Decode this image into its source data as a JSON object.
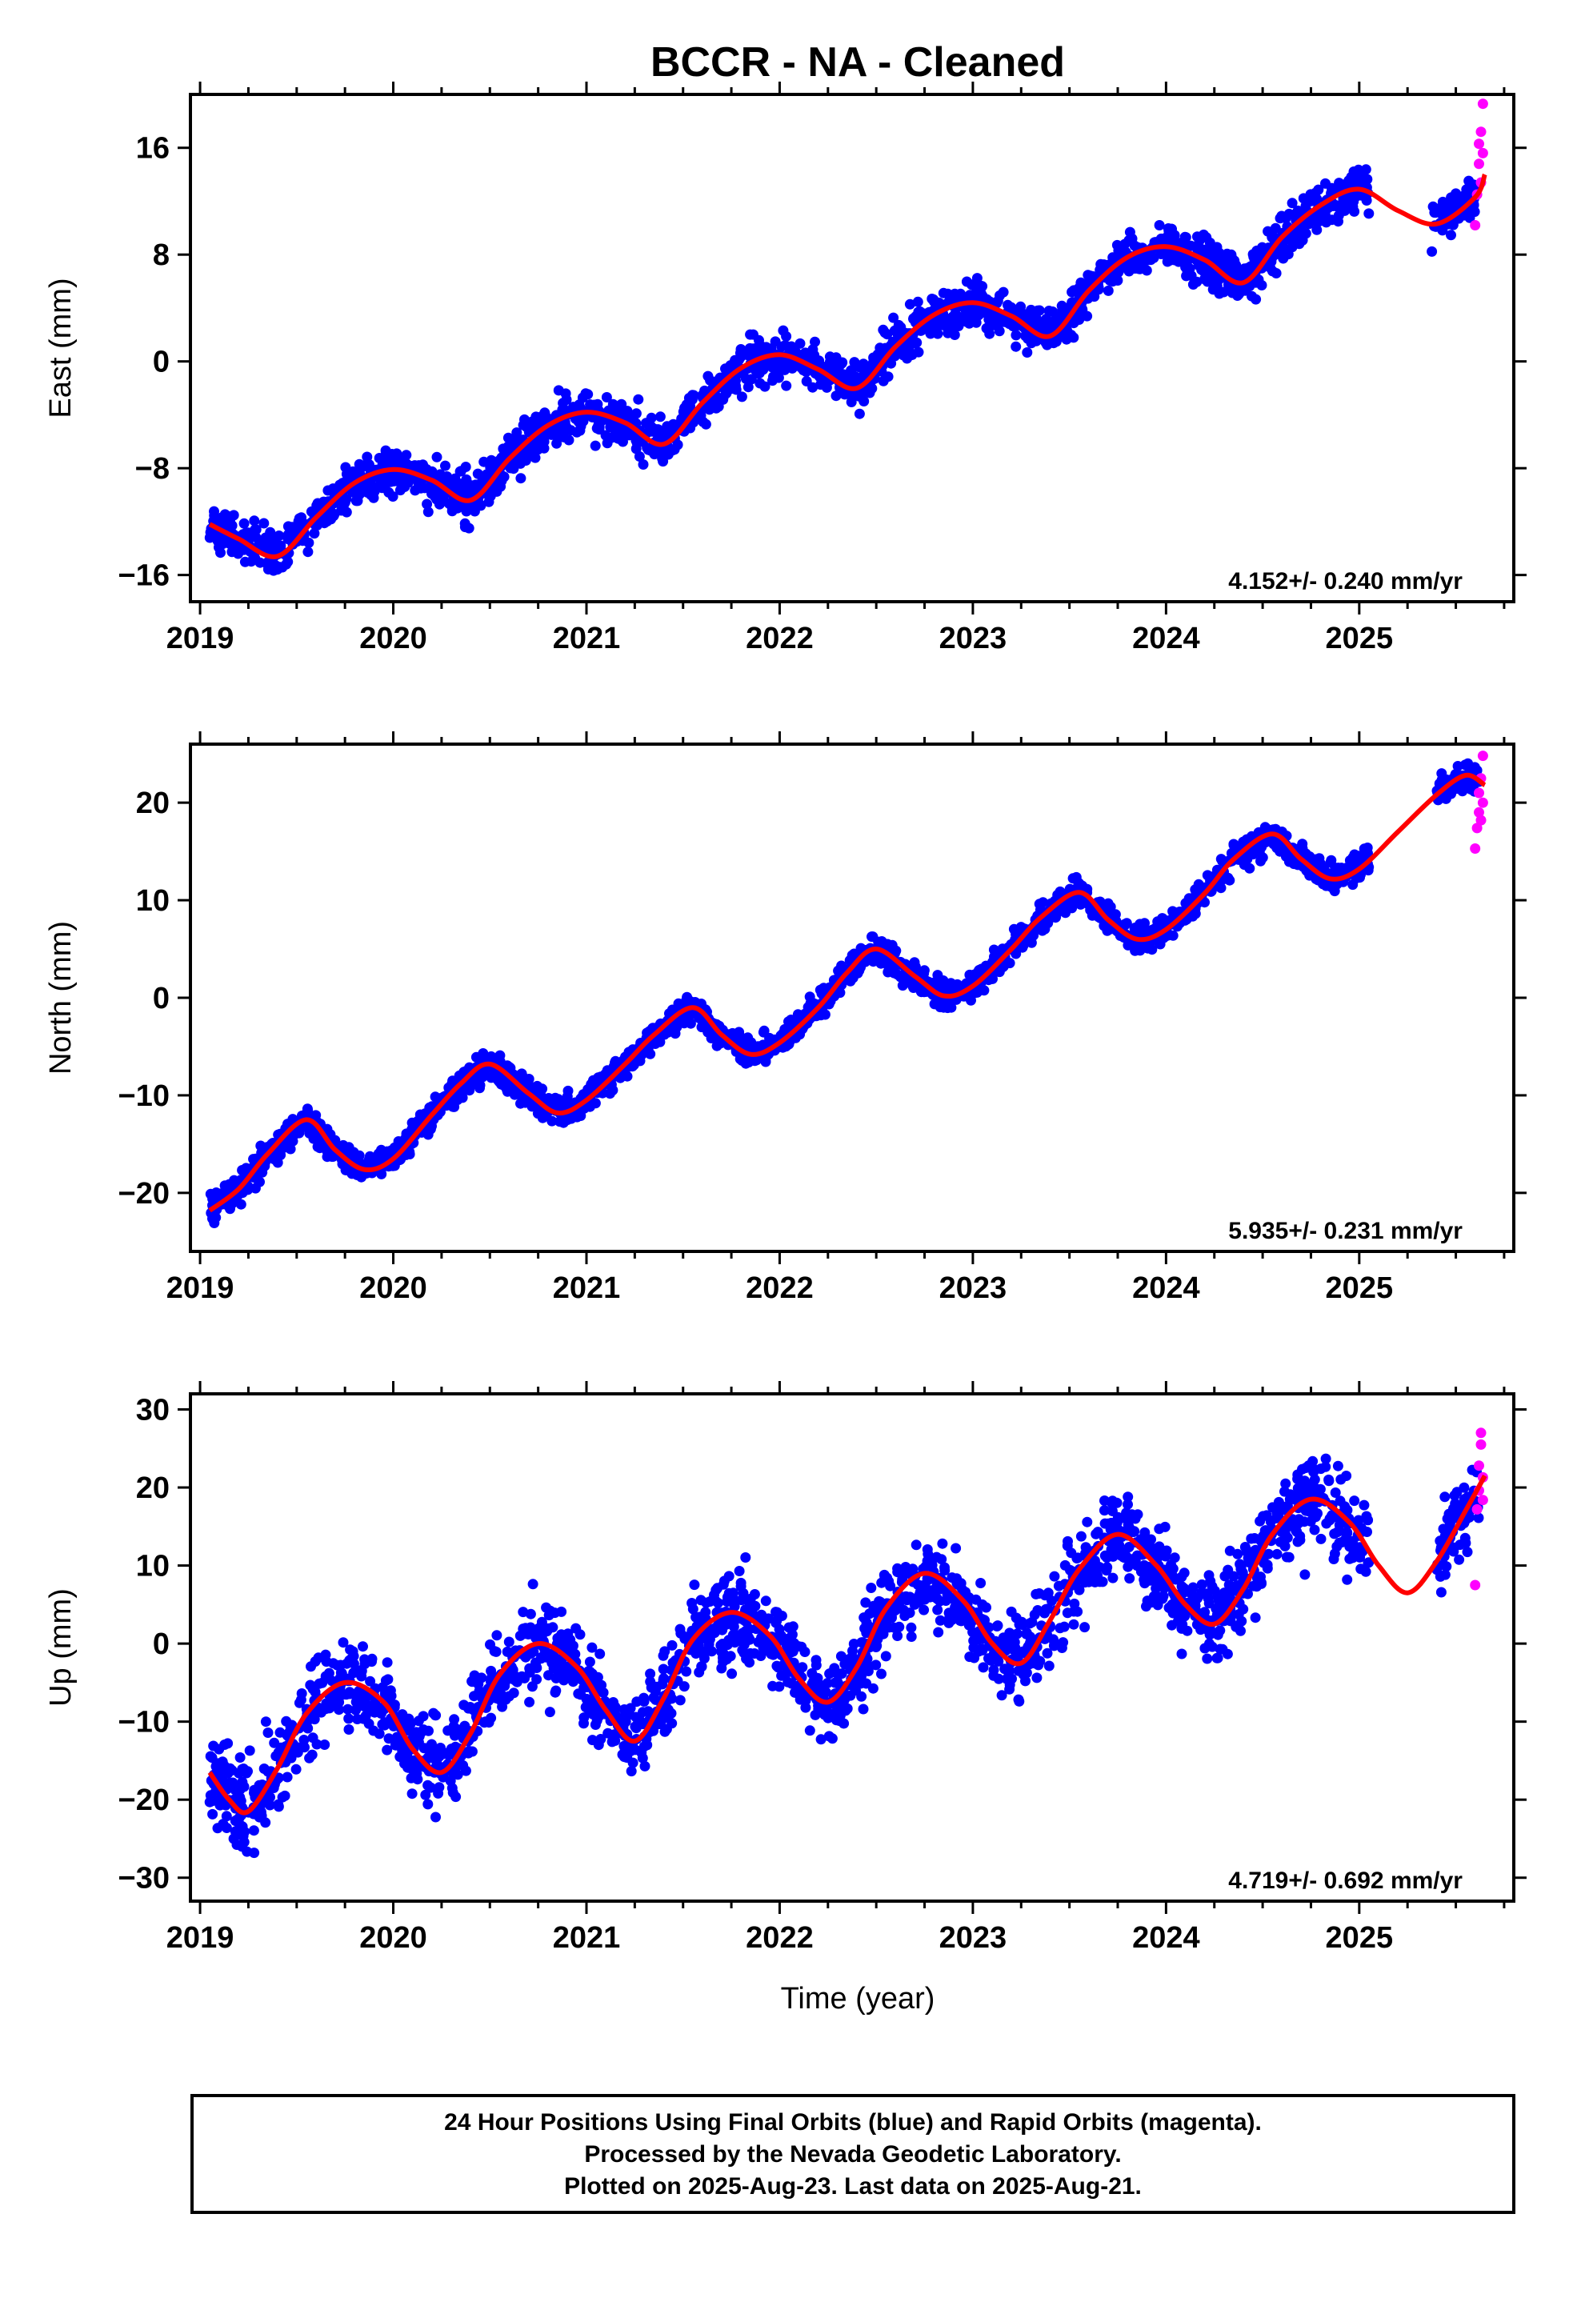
{
  "figure": {
    "title": "BCCR  - NA - Cleaned",
    "xlabel": "Time (year)",
    "footer_lines": [
      "24 Hour Positions Using Final Orbits (blue) and Rapid Orbits (magenta).",
      "Processed by the Nevada Geodetic Laboratory.",
      "Plotted on 2025-Aug-23. Last data on 2025-Aug-21."
    ],
    "colors": {
      "final": "#0000ff",
      "rapid": "#ff00ff",
      "model": "#ff0000"
    }
  },
  "chart_data": [
    {
      "type": "scatter",
      "ylabel": "East (mm)",
      "xlim": [
        2018.95,
        2025.8
      ],
      "ylim": [
        -18,
        20
      ],
      "xticks": [
        2019,
        2020,
        2021,
        2022,
        2023,
        2024,
        2025
      ],
      "xtick_labels": [
        "2019",
        "2020",
        "2021",
        "2022",
        "2023",
        "2024",
        "2025"
      ],
      "yticks": [
        -16,
        -8,
        0,
        8,
        16
      ],
      "ytick_labels": [
        "−16",
        "−8",
        "0",
        "8",
        "16"
      ],
      "rate_label": "4.152+/- 0.240 mm/yr",
      "model": {
        "x": [
          2019.05,
          2019.2,
          2019.4,
          2019.6,
          2019.8,
          2020.0,
          2020.2,
          2020.4,
          2020.6,
          2020.8,
          2021.0,
          2021.2,
          2021.4,
          2021.6,
          2021.8,
          2022.0,
          2022.2,
          2022.4,
          2022.6,
          2022.8,
          2023.0,
          2023.2,
          2023.4,
          2023.6,
          2023.8,
          2024.0,
          2024.2,
          2024.4,
          2024.6,
          2024.8,
          2025.0,
          2025.2,
          2025.4,
          2025.6,
          2025.65
        ],
        "y": [
          -12.2,
          -13.3,
          -14.6,
          -11.7,
          -9.1,
          -8.1,
          -8.9,
          -10.4,
          -7.3,
          -4.8,
          -3.8,
          -4.6,
          -6.2,
          -3.1,
          -0.5,
          0.5,
          -0.6,
          -2.0,
          1.1,
          3.5,
          4.4,
          3.4,
          1.9,
          5.3,
          7.8,
          8.6,
          7.6,
          5.9,
          9.3,
          11.7,
          12.9,
          11.3,
          10.3,
          12.3,
          14.0
        ]
      },
      "final_band": [
        {
          "range": [
            2019.05,
            2019.15
          ],
          "spread": 1.2
        },
        {
          "range": [
            2019.25,
            2019.45
          ],
          "spread": 1.3
        },
        {
          "range": [
            2020.6,
            2020.8
          ],
          "spread": 1.2
        },
        {
          "range": [
            2022.35,
            2022.45
          ],
          "spread": 1.2
        },
        {
          "range": [
            2023.4,
            2023.5
          ],
          "spread": 1.5
        },
        {
          "range": [
            2025.35,
            2025.62
          ],
          "spread": 1.1
        }
      ],
      "rapid": {
        "x": [
          2025.6,
          2025.61,
          2025.62,
          2025.62,
          2025.63,
          2025.63,
          2025.64,
          2025.64
        ],
        "y": [
          10.2,
          12.5,
          14.8,
          16.3,
          13.4,
          17.2,
          15.6,
          19.3
        ]
      }
    },
    {
      "type": "scatter",
      "ylabel": "North (mm)",
      "xlim": [
        2018.95,
        2025.8
      ],
      "ylim": [
        -26,
        26
      ],
      "xticks": [
        2019,
        2020,
        2021,
        2022,
        2023,
        2024,
        2025
      ],
      "xtick_labels": [
        "2019",
        "2020",
        "2021",
        "2022",
        "2023",
        "2024",
        "2025"
      ],
      "yticks": [
        -20,
        -10,
        0,
        10,
        20
      ],
      "ytick_labels": [
        "−20",
        "−10",
        "0",
        "10",
        "20"
      ],
      "rate_label": "5.935+/- 0.231 mm/yr",
      "model": {
        "x": [
          2019.05,
          2019.2,
          2019.35,
          2019.55,
          2019.7,
          2019.85,
          2020.0,
          2020.2,
          2020.35,
          2020.5,
          2020.7,
          2020.85,
          2021.0,
          2021.2,
          2021.35,
          2021.55,
          2021.7,
          2021.85,
          2022.0,
          2022.2,
          2022.35,
          2022.5,
          2022.7,
          2022.85,
          2023.0,
          2023.2,
          2023.35,
          2023.55,
          2023.7,
          2023.85,
          2024.0,
          2024.2,
          2024.35,
          2024.55,
          2024.7,
          2024.85,
          2025.0,
          2025.2,
          2025.4,
          2025.55,
          2025.65
        ],
        "y": [
          -21.8,
          -19.6,
          -16.0,
          -12.5,
          -15.6,
          -17.6,
          -16.5,
          -12.0,
          -8.8,
          -6.8,
          -9.8,
          -11.8,
          -10.5,
          -6.8,
          -3.8,
          -1.0,
          -3.8,
          -5.8,
          -4.6,
          -1.0,
          2.6,
          5.0,
          2.2,
          0.2,
          1.2,
          5.0,
          8.2,
          10.8,
          8.0,
          6.0,
          7.0,
          10.7,
          14.2,
          16.8,
          14.2,
          12.2,
          13.2,
          17.0,
          20.8,
          22.8,
          21.8
        ]
      },
      "final_band": [
        {
          "range": [
            2019.05,
            2020.0
          ],
          "spread": 1.0
        },
        {
          "range": [
            2020.0,
            2021.0
          ],
          "spread": 1.0
        },
        {
          "range": [
            2021.0,
            2022.0
          ],
          "spread": 1.0
        },
        {
          "range": [
            2022.0,
            2023.0
          ],
          "spread": 1.0
        },
        {
          "range": [
            2023.0,
            2024.0
          ],
          "spread": 1.0
        },
        {
          "range": [
            2024.0,
            2025.05
          ],
          "spread": 1.0
        },
        {
          "range": [
            2025.4,
            2025.62
          ],
          "spread": 1.0
        }
      ],
      "rapid": {
        "x": [
          2025.6,
          2025.61,
          2025.62,
          2025.62,
          2025.63,
          2025.63,
          2025.64,
          2025.64
        ],
        "y": [
          15.3,
          17.4,
          19.0,
          21.0,
          18.2,
          22.5,
          20.0,
          24.8
        ]
      }
    },
    {
      "type": "scatter",
      "ylabel": "Up (mm)",
      "xlim": [
        2018.95,
        2025.8
      ],
      "ylim": [
        -33,
        32
      ],
      "xticks": [
        2019,
        2020,
        2021,
        2022,
        2023,
        2024,
        2025
      ],
      "xtick_labels": [
        "2019",
        "2020",
        "2021",
        "2022",
        "2023",
        "2024",
        "2025"
      ],
      "yticks": [
        -30,
        -20,
        -10,
        0,
        10,
        20,
        30
      ],
      "ytick_labels": [
        "−30",
        "−20",
        "−10",
        "0",
        "10",
        "20",
        "30"
      ],
      "rate_label": "4.719+/- 0.692 mm/yr",
      "model": {
        "x": [
          2019.05,
          2019.15,
          2019.25,
          2019.4,
          2019.55,
          2019.75,
          2019.95,
          2020.1,
          2020.25,
          2020.4,
          2020.55,
          2020.75,
          2020.95,
          2021.1,
          2021.25,
          2021.4,
          2021.55,
          2021.75,
          2021.95,
          2022.1,
          2022.25,
          2022.4,
          2022.55,
          2022.75,
          2022.95,
          2023.1,
          2023.25,
          2023.4,
          2023.55,
          2023.75,
          2023.95,
          2024.1,
          2024.25,
          2024.4,
          2024.55,
          2024.75,
          2024.95,
          2025.1,
          2025.25,
          2025.4,
          2025.55,
          2025.65
        ],
        "y": [
          -16.5,
          -20.0,
          -21.5,
          -16.0,
          -9.0,
          -5.0,
          -7.5,
          -13.5,
          -16.5,
          -11.5,
          -4.0,
          0.0,
          -3.0,
          -8.5,
          -12.5,
          -7.0,
          0.5,
          4.0,
          1.0,
          -4.5,
          -7.5,
          -3.0,
          4.5,
          9.0,
          5.5,
          0.0,
          -2.5,
          3.0,
          9.5,
          14.0,
          10.0,
          5.0,
          2.5,
          7.0,
          14.0,
          18.5,
          15.5,
          10.0,
          6.5,
          10.5,
          17.0,
          21.5
        ]
      },
      "final_band": [
        {
          "range": [
            2019.05,
            2020.0
          ],
          "spread": 4.0
        },
        {
          "range": [
            2020.0,
            2021.0
          ],
          "spread": 4.0
        },
        {
          "range": [
            2021.0,
            2022.0
          ],
          "spread": 4.0
        },
        {
          "range": [
            2022.0,
            2023.0
          ],
          "spread": 4.0
        },
        {
          "range": [
            2023.0,
            2024.0
          ],
          "spread": 4.0
        },
        {
          "range": [
            2024.0,
            2025.05
          ],
          "spread": 4.0
        },
        {
          "range": [
            2025.4,
            2025.62
          ],
          "spread": 3.5
        }
      ],
      "rapid": {
        "x": [
          2025.6,
          2025.61,
          2025.62,
          2025.62,
          2025.63,
          2025.63,
          2025.64,
          2025.64
        ],
        "y": [
          7.5,
          17.2,
          19.6,
          22.8,
          25.5,
          27.0,
          21.3,
          18.4
        ]
      }
    }
  ]
}
